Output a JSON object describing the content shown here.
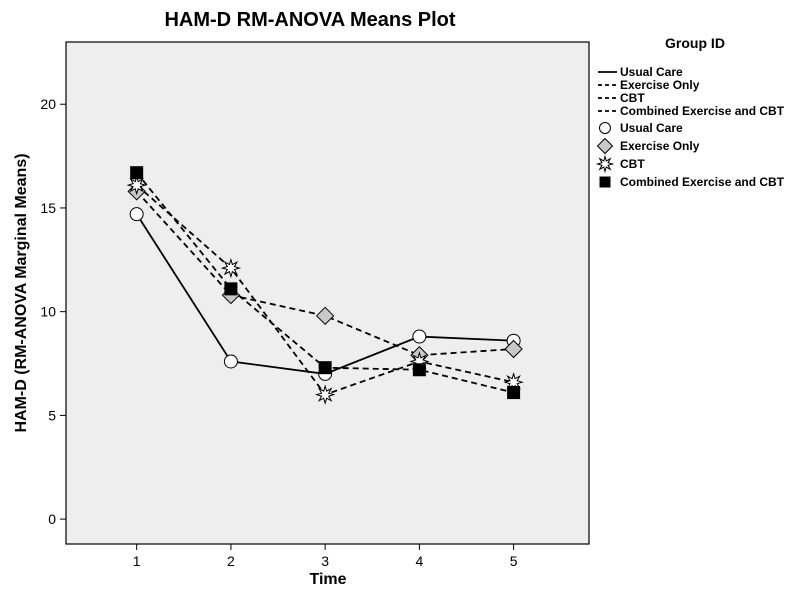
{
  "chart_data": {
    "type": "line",
    "title": "HAM-D RM-ANOVA Means Plot",
    "xlabel": "Time",
    "ylabel": "HAM-D (RM-ANOVA Marginal Means)",
    "x": [
      1,
      2,
      3,
      4,
      5
    ],
    "x_tick_labels": [
      "1",
      "2",
      "3",
      "4",
      "5"
    ],
    "y_ticks": [
      0,
      5,
      10,
      15,
      20
    ],
    "y_tick_labels": [
      "0",
      "5",
      "10",
      "15",
      "20"
    ],
    "xlim": [
      0.25,
      5.8
    ],
    "ylim": [
      -1.2,
      23.0
    ],
    "grid": false,
    "plot_background": "#eeeeee",
    "legend_title": "Group ID",
    "legend_placement": "right",
    "series": [
      {
        "name": "Usual Care",
        "values": [
          14.7,
          7.6,
          7.0,
          8.8,
          8.6
        ],
        "line_style": "solid",
        "marker": "circle",
        "marker_color": "#ffffff"
      },
      {
        "name": "Exercise Only",
        "values": [
          15.8,
          10.8,
          9.8,
          7.9,
          8.2
        ],
        "line_style": "dashed",
        "marker": "diamond",
        "marker_color": "#c8c8c8"
      },
      {
        "name": "CBT",
        "values": [
          16.1,
          12.1,
          6.0,
          7.6,
          6.6
        ],
        "line_style": "dashed",
        "marker": "star",
        "marker_color": "#ffffff"
      },
      {
        "name": "Combined Exercise and CBT",
        "values": [
          16.7,
          11.1,
          7.3,
          7.2,
          6.1
        ],
        "line_style": "dashed",
        "marker": "square",
        "marker_color": "#000000"
      }
    ]
  }
}
